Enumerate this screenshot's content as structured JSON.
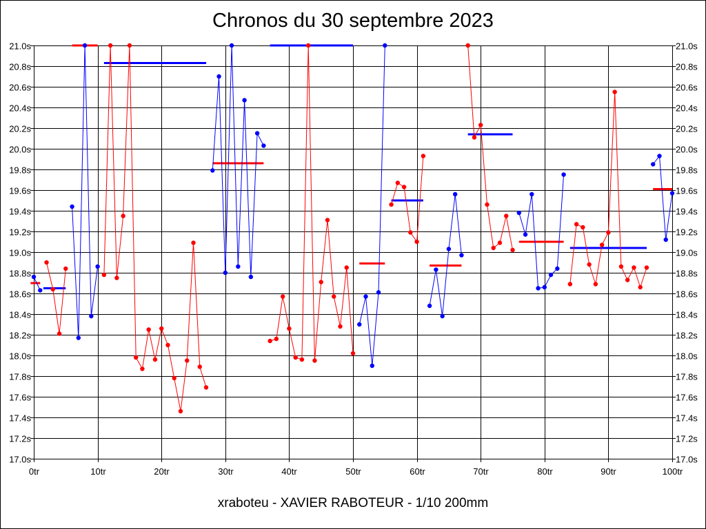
{
  "title": "Chronos du 30 septembre 2023",
  "footer": "xraboteu - XAVIER RABOTEUR - 1/10 200mm",
  "colors": {
    "red": "#ff0000",
    "blue": "#0000ff",
    "grid": "#000000"
  },
  "chart_data": {
    "type": "line",
    "title": "Chronos du 30 septembre 2023",
    "xlabel": "",
    "ylabel": "",
    "xlim": [
      0,
      100
    ],
    "ylim": [
      17.0,
      21.0
    ],
    "grid": true,
    "x_ticks": [
      "0tr",
      "10tr",
      "20tr",
      "30tr",
      "40tr",
      "50tr",
      "60tr",
      "70tr",
      "80tr",
      "90tr",
      "100tr"
    ],
    "y_ticks": [
      "21.0s",
      "20.8s",
      "20.6s",
      "20.4s",
      "20.2s",
      "20.0s",
      "19.8s",
      "19.6s",
      "19.4s",
      "19.2s",
      "19.0s",
      "18.8s",
      "18.6s",
      "18.4s",
      "18.2s",
      "18.0s",
      "17.8s",
      "17.6s",
      "17.4s",
      "17.2s",
      "17.0s"
    ],
    "series": [
      {
        "color": "blue",
        "x": [
          0,
          1
        ],
        "y": [
          18.76,
          18.63
        ]
      },
      {
        "color": "red",
        "x": [
          2,
          3,
          4,
          5
        ],
        "y": [
          18.9,
          18.64,
          18.21,
          18.84
        ]
      },
      {
        "color": "blue",
        "x": [
          6,
          7,
          8,
          9,
          10
        ],
        "y": [
          19.44,
          18.17,
          21.0,
          18.38,
          18.86
        ]
      },
      {
        "color": "red",
        "x": [
          11,
          12,
          13,
          14,
          15,
          16,
          17,
          18,
          19,
          20,
          21,
          22,
          23,
          24,
          25,
          26,
          27
        ],
        "y": [
          18.78,
          21.0,
          18.75,
          19.35,
          21.0,
          17.98,
          17.87,
          18.25,
          17.96,
          18.26,
          18.1,
          17.78,
          17.46,
          17.95,
          19.09,
          17.89,
          17.69
        ]
      },
      {
        "color": "blue",
        "x": [
          28,
          29,
          30,
          31,
          32,
          33,
          34,
          35,
          36
        ],
        "y": [
          19.79,
          20.7,
          18.8,
          21.0,
          18.86,
          20.47,
          18.76,
          20.15,
          20.03
        ]
      },
      {
        "color": "red",
        "x": [
          37,
          38,
          39,
          40,
          41,
          42,
          43,
          44,
          45,
          46,
          47,
          48,
          49,
          50
        ],
        "y": [
          18.14,
          18.16,
          18.57,
          18.26,
          17.98,
          17.96,
          21.0,
          17.95,
          18.71,
          19.31,
          18.57,
          18.28,
          18.85,
          18.02
        ]
      },
      {
        "color": "blue",
        "x": [
          51,
          52,
          53,
          54,
          55
        ],
        "y": [
          18.3,
          18.57,
          17.9,
          18.61,
          21.0
        ]
      },
      {
        "color": "red",
        "x": [
          56,
          57,
          58,
          59,
          60,
          61
        ],
        "y": [
          19.46,
          19.67,
          19.63,
          19.19,
          19.1,
          19.93
        ]
      },
      {
        "color": "blue",
        "x": [
          62,
          63,
          64,
          65,
          66,
          67
        ],
        "y": [
          18.48,
          18.83,
          18.38,
          19.03,
          19.56,
          18.97
        ]
      },
      {
        "color": "red",
        "x": [
          68,
          69,
          70,
          71,
          72,
          73,
          74,
          75
        ],
        "y": [
          21.0,
          20.11,
          20.23,
          19.46,
          19.04,
          19.09,
          19.35,
          19.02
        ]
      },
      {
        "color": "blue",
        "x": [
          76,
          77,
          78,
          79,
          80,
          81,
          82,
          83
        ],
        "y": [
          19.38,
          19.17,
          19.56,
          18.65,
          18.66,
          18.78,
          18.84,
          19.75
        ]
      },
      {
        "color": "red",
        "x": [
          84,
          85,
          86,
          87,
          88,
          89,
          90,
          91,
          92,
          93,
          94,
          95,
          96
        ],
        "y": [
          18.69,
          19.27,
          19.24,
          18.88,
          18.69,
          19.07,
          19.19,
          20.55,
          18.86,
          18.73,
          18.85,
          18.66,
          18.85
        ]
      },
      {
        "color": "blue",
        "x": [
          97,
          98,
          99,
          100
        ],
        "y": [
          19.85,
          19.93,
          19.12,
          19.57
        ]
      }
    ],
    "averages": [
      {
        "color": "red",
        "x0": -0.5,
        "x1": 1,
        "y": 18.7
      },
      {
        "color": "blue",
        "x0": 1.5,
        "x1": 5,
        "y": 18.65
      },
      {
        "color": "red",
        "x0": 6,
        "x1": 10,
        "y": 21.0
      },
      {
        "color": "blue",
        "x0": 11,
        "x1": 27,
        "y": 20.83
      },
      {
        "color": "red",
        "x0": 28,
        "x1": 36,
        "y": 19.86
      },
      {
        "color": "blue",
        "x0": 37,
        "x1": 50,
        "y": 21.0
      },
      {
        "color": "red",
        "x0": 51,
        "x1": 55,
        "y": 18.89
      },
      {
        "color": "blue",
        "x0": 56,
        "x1": 61,
        "y": 19.5
      },
      {
        "color": "red",
        "x0": 62,
        "x1": 67,
        "y": 18.87
      },
      {
        "color": "blue",
        "x0": 68,
        "x1": 75,
        "y": 20.14
      },
      {
        "color": "red",
        "x0": 76,
        "x1": 83,
        "y": 19.1
      },
      {
        "color": "blue",
        "x0": 84,
        "x1": 96,
        "y": 19.04
      },
      {
        "color": "red",
        "x0": 97,
        "x1": 100,
        "y": 19.61
      }
    ]
  }
}
